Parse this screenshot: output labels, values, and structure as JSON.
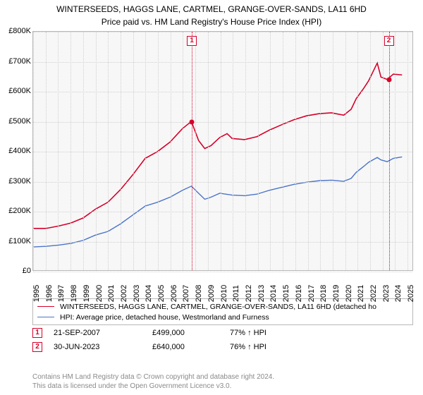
{
  "title_line1": "WINTERSEEDS, HAGGS LANE, CARTMEL, GRANGE-OVER-SANDS, LA11 6HD",
  "title_line2": "Price paid vs. HM Land Registry's House Price Index (HPI)",
  "chart": {
    "type": "line",
    "background_color": "#f7f7f7",
    "grid_color": "#d0d0d0",
    "x_years": [
      1995,
      1996,
      1997,
      1998,
      1999,
      2000,
      2001,
      2002,
      2003,
      2004,
      2005,
      2006,
      2007,
      2008,
      2009,
      2010,
      2011,
      2012,
      2013,
      2014,
      2015,
      2016,
      2017,
      2018,
      2019,
      2020,
      2021,
      2022,
      2023,
      2024,
      2025
    ],
    "y_ticks": [
      0,
      100000,
      200000,
      300000,
      400000,
      500000,
      600000,
      700000,
      800000
    ],
    "y_tick_labels": [
      "£0",
      "£100K",
      "£200K",
      "£300K",
      "£400K",
      "£500K",
      "£600K",
      "£700K",
      "£800K"
    ],
    "y_min": 0,
    "y_max": 800000,
    "x_min": 1995,
    "x_max": 2025.5,
    "series": [
      {
        "id": "price_paid",
        "color": "#d6002a",
        "width": 1.6,
        "label": "WINTERSEEDS, HAGGS LANE, CARTMEL, GRANGE-OVER-SANDS, LA11 6HD (detached ho",
        "points": [
          [
            1995,
            140000
          ],
          [
            1996,
            140000
          ],
          [
            1997,
            148000
          ],
          [
            1998,
            158000
          ],
          [
            1999,
            175000
          ],
          [
            2000,
            205000
          ],
          [
            2001,
            228000
          ],
          [
            2002,
            270000
          ],
          [
            2003,
            320000
          ],
          [
            2004,
            375000
          ],
          [
            2005,
            398000
          ],
          [
            2006,
            430000
          ],
          [
            2007,
            475000
          ],
          [
            2007.72,
            499000
          ],
          [
            2008.3,
            435000
          ],
          [
            2008.8,
            408000
          ],
          [
            2009.3,
            418000
          ],
          [
            2010,
            445000
          ],
          [
            2010.6,
            458000
          ],
          [
            2011,
            442000
          ],
          [
            2012,
            438000
          ],
          [
            2013,
            448000
          ],
          [
            2014,
            470000
          ],
          [
            2015,
            488000
          ],
          [
            2016,
            505000
          ],
          [
            2017,
            518000
          ],
          [
            2018,
            525000
          ],
          [
            2019,
            528000
          ],
          [
            2020,
            520000
          ],
          [
            2020.6,
            540000
          ],
          [
            2021,
            575000
          ],
          [
            2021.6,
            610000
          ],
          [
            2022,
            635000
          ],
          [
            2022.7,
            695000
          ],
          [
            2023,
            648000
          ],
          [
            2023.5,
            640000
          ],
          [
            2024,
            658000
          ],
          [
            2024.7,
            655000
          ]
        ]
      },
      {
        "id": "hpi",
        "color": "#4a74c9",
        "width": 1.4,
        "label": "HPI: Average price, detached house, Westmorland and Furness",
        "points": [
          [
            1995,
            78000
          ],
          [
            1996,
            80000
          ],
          [
            1997,
            84000
          ],
          [
            1998,
            90000
          ],
          [
            1999,
            100000
          ],
          [
            2000,
            118000
          ],
          [
            2001,
            130000
          ],
          [
            2002,
            155000
          ],
          [
            2003,
            185000
          ],
          [
            2004,
            215000
          ],
          [
            2005,
            228000
          ],
          [
            2006,
            245000
          ],
          [
            2007,
            268000
          ],
          [
            2007.72,
            282000
          ],
          [
            2008.3,
            258000
          ],
          [
            2008.8,
            238000
          ],
          [
            2009.3,
            245000
          ],
          [
            2010,
            258000
          ],
          [
            2011,
            252000
          ],
          [
            2012,
            250000
          ],
          [
            2013,
            255000
          ],
          [
            2014,
            268000
          ],
          [
            2015,
            278000
          ],
          [
            2016,
            288000
          ],
          [
            2017,
            295000
          ],
          [
            2018,
            300000
          ],
          [
            2019,
            302000
          ],
          [
            2020,
            298000
          ],
          [
            2020.6,
            308000
          ],
          [
            2021,
            328000
          ],
          [
            2021.6,
            348000
          ],
          [
            2022,
            362000
          ],
          [
            2022.7,
            378000
          ],
          [
            2023,
            370000
          ],
          [
            2023.5,
            364000
          ],
          [
            2024,
            375000
          ],
          [
            2024.7,
            380000
          ]
        ]
      }
    ],
    "events": [
      {
        "n": "1",
        "year": 2007.72,
        "price": 499000,
        "color": "#d6002a",
        "date_label": "21-SEP-2007",
        "price_label": "£499,000",
        "hpi_label": "77% ↑ HPI"
      },
      {
        "n": "2",
        "year": 2023.5,
        "price": 640000,
        "color": "#d6002a",
        "date_label": "30-JUN-2023",
        "price_label": "£640,000",
        "hpi_label": "76% ↑ HPI"
      }
    ]
  },
  "legend_title_series0": "WINTERSEEDS, HAGGS LANE, CARTMEL, GRANGE-OVER-SANDS, LA11 6HD (detached ho",
  "legend_title_series1": "HPI: Average price, detached house, Westmorland and Furness",
  "footer_line1": "Contains HM Land Registry data © Crown copyright and database right 2024.",
  "footer_line2": "This data is licensed under the Open Government Licence v3.0."
}
